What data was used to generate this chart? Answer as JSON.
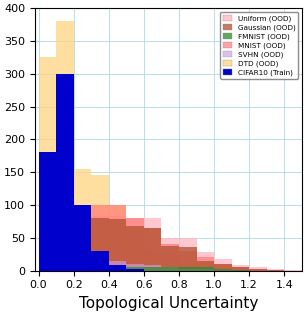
{
  "title": "",
  "xlabel": "Topological Uncertainty",
  "ylabel": "",
  "xlim": [
    -0.02,
    1.5
  ],
  "ylim": [
    0,
    400
  ],
  "yticks": [
    0,
    50,
    100,
    150,
    200,
    250,
    300,
    350,
    400
  ],
  "xticks": [
    0.0,
    0.2,
    0.4,
    0.6,
    0.8,
    1.0,
    1.2,
    1.4
  ],
  "bin_edges": [
    0.0,
    0.1,
    0.2,
    0.3,
    0.4,
    0.5,
    0.6,
    0.7,
    0.8,
    0.9,
    1.0,
    1.1,
    1.2,
    1.3,
    1.4,
    1.5
  ],
  "datasets": {
    "Uniform (OOD)": {
      "color": "#ffb6c1",
      "alpha": 0.75,
      "values": [
        95,
        100,
        97,
        83,
        83,
        80,
        80,
        50,
        50,
        28,
        18,
        8,
        5,
        2,
        1
      ]
    },
    "Gaussian (OOD)": {
      "color": "#b05030",
      "alpha": 0.75,
      "values": [
        80,
        79,
        80,
        80,
        78,
        68,
        65,
        38,
        36,
        15,
        10,
        5,
        3,
        1,
        0
      ]
    },
    "FMNIST (OOD)": {
      "color": "#2e8b2e",
      "alpha": 0.75,
      "values": [
        100,
        105,
        30,
        8,
        3,
        5,
        5,
        5,
        5,
        5,
        3,
        1,
        0,
        0,
        0
      ]
    },
    "MNIST (OOD)": {
      "color": "#ff7070",
      "alpha": 0.65,
      "values": [
        60,
        100,
        100,
        100,
        100,
        80,
        65,
        40,
        30,
        20,
        10,
        5,
        3,
        1,
        0
      ]
    },
    "SVHN (OOD)": {
      "color": "#c8a0e0",
      "alpha": 0.65,
      "values": [
        30,
        50,
        30,
        20,
        15,
        10,
        8,
        5,
        3,
        2,
        1,
        0,
        0,
        0,
        0
      ]
    },
    "DTD (OOD)": {
      "color": "#ffd580",
      "alpha": 0.75,
      "values": [
        325,
        380,
        155,
        145,
        100,
        65,
        30,
        26,
        12,
        8,
        4,
        2,
        1,
        0,
        0
      ]
    },
    "CIFAR10 (Train)": {
      "color": "#0000cc",
      "alpha": 1.0,
      "values": [
        180,
        300,
        100,
        30,
        8,
        2,
        0,
        0,
        0,
        0,
        0,
        0,
        0,
        0,
        0
      ]
    }
  },
  "legend_order": [
    "Uniform (OOD)",
    "Gaussian (OOD)",
    "FMNIST (OOD)",
    "MNIST (OOD)",
    "SVHN (OOD)",
    "DTD (OOD)",
    "CIFAR10 (Train)"
  ],
  "draw_order": [
    "DTD (OOD)",
    "Uniform (OOD)",
    "MNIST (OOD)",
    "Gaussian (OOD)",
    "SVHN (OOD)",
    "FMNIST (OOD)",
    "CIFAR10 (Train)"
  ],
  "figsize": [
    3.06,
    3.15
  ],
  "dpi": 100
}
